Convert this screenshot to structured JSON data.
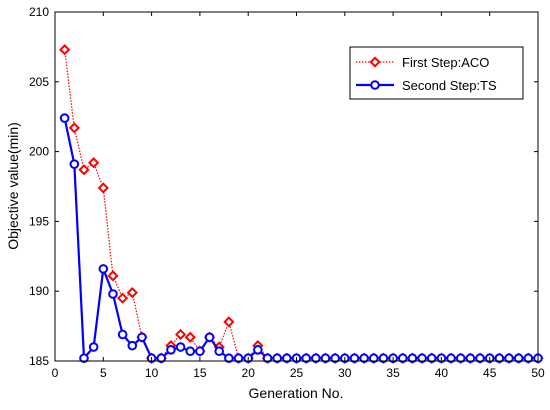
{
  "chart_data": {
    "type": "line",
    "xlabel": "Generation No.",
    "ylabel": "Objective value(min)",
    "xlim": [
      0,
      50
    ],
    "ylim": [
      185,
      210
    ],
    "xticks": [
      0,
      5,
      10,
      15,
      20,
      25,
      30,
      35,
      40,
      45,
      50
    ],
    "yticks": [
      185,
      190,
      195,
      200,
      205,
      210
    ],
    "grid": false,
    "legend_position": "top-right",
    "series": [
      {
        "name": "First Step:ACO",
        "color": "#ff0000",
        "line_style": "dotted",
        "marker": "diamond",
        "x": [
          1,
          2,
          3,
          4,
          5,
          6,
          7,
          8,
          9,
          10,
          11,
          12,
          13,
          14,
          15,
          16,
          17,
          18,
          19,
          20,
          21,
          22,
          23,
          24,
          25,
          26,
          27,
          28,
          29,
          30,
          31,
          32,
          33,
          34,
          35,
          36,
          37,
          38,
          39,
          40,
          41,
          42,
          43,
          44,
          45,
          46,
          47,
          48,
          49,
          50
        ],
        "values": [
          207.3,
          201.7,
          198.7,
          199.2,
          197.4,
          191.1,
          189.5,
          189.9,
          186.7,
          185.2,
          185.2,
          186.1,
          186.9,
          186.7,
          185.7,
          186.7,
          186.0,
          187.8,
          185.2,
          185.2,
          186.1,
          185.2,
          185.2,
          185.2,
          185.2,
          185.2,
          185.2,
          185.2,
          185.2,
          185.2,
          185.2,
          185.2,
          185.2,
          185.2,
          185.2,
          185.2,
          185.2,
          185.2,
          185.2,
          185.2,
          185.2,
          185.2,
          185.2,
          185.2,
          185.2,
          185.2,
          185.2,
          185.2,
          185.2,
          185.2
        ]
      },
      {
        "name": "Second Step:TS",
        "color": "#0000ff",
        "line_style": "solid",
        "marker": "circle",
        "x": [
          1,
          2,
          3,
          4,
          5,
          6,
          7,
          8,
          9,
          10,
          11,
          12,
          13,
          14,
          15,
          16,
          17,
          18,
          19,
          20,
          21,
          22,
          23,
          24,
          25,
          26,
          27,
          28,
          29,
          30,
          31,
          32,
          33,
          34,
          35,
          36,
          37,
          38,
          39,
          40,
          41,
          42,
          43,
          44,
          45,
          46,
          47,
          48,
          49,
          50
        ],
        "values": [
          202.4,
          199.1,
          185.2,
          186.0,
          191.6,
          189.8,
          186.9,
          186.1,
          186.7,
          185.2,
          185.2,
          185.8,
          186.0,
          185.7,
          185.7,
          186.7,
          185.7,
          185.2,
          185.2,
          185.2,
          185.8,
          185.2,
          185.2,
          185.2,
          185.2,
          185.2,
          185.2,
          185.2,
          185.2,
          185.2,
          185.2,
          185.2,
          185.2,
          185.2,
          185.2,
          185.2,
          185.2,
          185.2,
          185.2,
          185.2,
          185.2,
          185.2,
          185.2,
          185.2,
          185.2,
          185.2,
          185.2,
          185.2,
          185.2,
          185.2
        ]
      }
    ]
  }
}
